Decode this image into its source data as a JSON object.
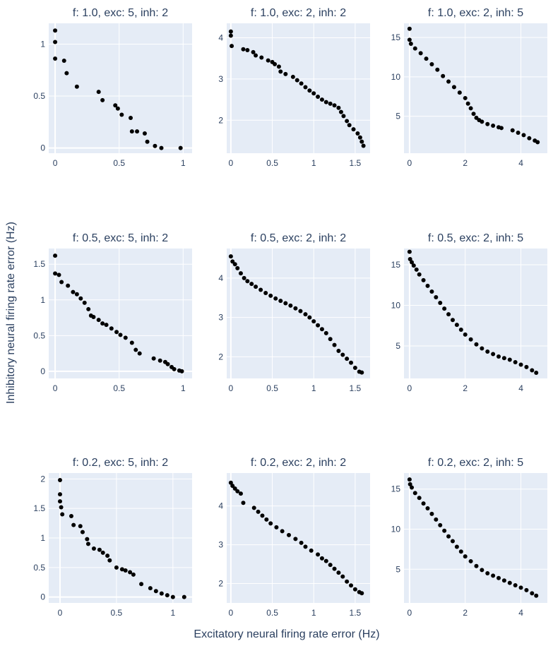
{
  "figure": {
    "xlabel": "Excitatory neural firing rate error (Hz)",
    "ylabel": "Inhibitory neural firing rate error (Hz)"
  },
  "chart_data": [
    {
      "type": "scatter",
      "title": "f: 1.0, exc: 5, inh: 2",
      "xlim": [
        -0.05,
        1.07
      ],
      "ylim": [
        -0.05,
        1.2
      ],
      "xticks": [
        0,
        0.5,
        1
      ],
      "xtick_labels": [
        "0",
        "0.5",
        "1"
      ],
      "yticks": [
        0,
        0.5,
        1
      ],
      "ytick_labels": [
        "0",
        "0.5",
        "1"
      ],
      "x": [
        0,
        0,
        0,
        0.07,
        0.09,
        0.17,
        0.34,
        0.37,
        0.47,
        0.49,
        0.52,
        0.59,
        0.6,
        0.64,
        0.7,
        0.72,
        0.78,
        0.83,
        0.98
      ],
      "y": [
        1.13,
        1.02,
        0.86,
        0.84,
        0.72,
        0.59,
        0.54,
        0.46,
        0.41,
        0.38,
        0.32,
        0.29,
        0.16,
        0.16,
        0.14,
        0.06,
        0.02,
        0.0,
        0.0
      ]
    },
    {
      "type": "scatter",
      "title": "f: 1.0, exc: 2, inh: 2",
      "xlim": [
        -0.05,
        1.68
      ],
      "ylim": [
        1.2,
        4.35
      ],
      "xticks": [
        0,
        0.5,
        1,
        1.5
      ],
      "xtick_labels": [
        "0",
        "0.5",
        "1",
        "1.5"
      ],
      "yticks": [
        2,
        3,
        4
      ],
      "ytick_labels": [
        "2",
        "3",
        "4"
      ],
      "x": [
        0,
        0,
        0.01,
        0.15,
        0.2,
        0.27,
        0.3,
        0.37,
        0.45,
        0.5,
        0.53,
        0.58,
        0.6,
        0.66,
        0.75,
        0.8,
        0.85,
        0.9,
        0.95,
        1.0,
        1.05,
        1.1,
        1.15,
        1.2,
        1.25,
        1.3,
        1.33,
        1.36,
        1.4,
        1.43,
        1.48,
        1.53,
        1.56,
        1.58,
        1.6
      ],
      "y": [
        4.15,
        4.05,
        3.8,
        3.72,
        3.7,
        3.65,
        3.57,
        3.52,
        3.45,
        3.41,
        3.36,
        3.3,
        3.18,
        3.12,
        3.05,
        2.97,
        2.89,
        2.8,
        2.72,
        2.65,
        2.57,
        2.5,
        2.44,
        2.4,
        2.36,
        2.3,
        2.2,
        2.1,
        1.98,
        1.88,
        1.78,
        1.68,
        1.58,
        1.48,
        1.38
      ]
    },
    {
      "type": "scatter",
      "title": "f: 1.0, exc: 2, inh: 5",
      "xlim": [
        -0.2,
        4.95
      ],
      "ylim": [
        0.3,
        16.8
      ],
      "xticks": [
        0,
        2,
        4
      ],
      "xtick_labels": [
        "0",
        "2",
        "4"
      ],
      "yticks": [
        5,
        10,
        15
      ],
      "ytick_labels": [
        "5",
        "10",
        "15"
      ],
      "x": [
        0,
        0,
        0.05,
        0.2,
        0.4,
        0.6,
        0.8,
        1.0,
        1.2,
        1.4,
        1.6,
        1.8,
        2.0,
        2.1,
        2.2,
        2.3,
        2.4,
        2.5,
        2.6,
        2.8,
        3.0,
        3.2,
        3.3,
        3.7,
        3.9,
        4.1,
        4.3,
        4.5,
        4.6
      ],
      "y": [
        16.1,
        14.7,
        14.2,
        13.6,
        13.0,
        12.3,
        11.6,
        10.9,
        10.1,
        9.4,
        8.7,
        8.0,
        7.3,
        6.6,
        6.0,
        5.3,
        4.8,
        4.5,
        4.3,
        4.0,
        3.8,
        3.6,
        3.5,
        3.2,
        2.9,
        2.6,
        2.2,
        1.9,
        1.7
      ]
    },
    {
      "type": "scatter",
      "title": "f: 0.5, exc: 5, inh: 2",
      "xlim": [
        -0.05,
        1.07
      ],
      "ylim": [
        -0.1,
        1.72
      ],
      "xticks": [
        0,
        0.5,
        1
      ],
      "xtick_labels": [
        "0",
        "0.5",
        "1"
      ],
      "yticks": [
        0,
        0.5,
        1,
        1.5
      ],
      "ytick_labels": [
        "0",
        "0.5",
        "1",
        "1.5"
      ],
      "x": [
        0,
        0,
        0.03,
        0.05,
        0.1,
        0.14,
        0.17,
        0.2,
        0.23,
        0.26,
        0.28,
        0.3,
        0.34,
        0.37,
        0.4,
        0.44,
        0.48,
        0.51,
        0.55,
        0.6,
        0.63,
        0.66,
        0.77,
        0.82,
        0.86,
        0.88,
        0.91,
        0.93,
        0.97,
        0.99
      ],
      "y": [
        1.62,
        1.37,
        1.35,
        1.25,
        1.2,
        1.11,
        1.08,
        1.02,
        0.96,
        0.87,
        0.78,
        0.76,
        0.72,
        0.67,
        0.65,
        0.6,
        0.55,
        0.51,
        0.47,
        0.4,
        0.3,
        0.25,
        0.18,
        0.15,
        0.13,
        0.1,
        0.06,
        0.03,
        0.01,
        0.0
      ]
    },
    {
      "type": "scatter",
      "title": "f: 0.5, exc: 2, inh: 2",
      "xlim": [
        -0.05,
        1.68
      ],
      "ylim": [
        1.45,
        4.75
      ],
      "xticks": [
        0,
        0.5,
        1,
        1.5
      ],
      "xtick_labels": [
        "0",
        "0.5",
        "1",
        "1.5"
      ],
      "yticks": [
        2,
        3,
        4
      ],
      "ytick_labels": [
        "2",
        "3",
        "4"
      ],
      "x": [
        0,
        0.02,
        0.05,
        0.08,
        0.12,
        0.16,
        0.2,
        0.25,
        0.3,
        0.36,
        0.42,
        0.48,
        0.54,
        0.6,
        0.66,
        0.72,
        0.78,
        0.84,
        0.9,
        0.95,
        1.0,
        1.05,
        1.1,
        1.15,
        1.2,
        1.25,
        1.3,
        1.35,
        1.4,
        1.45,
        1.5,
        1.55,
        1.58
      ],
      "y": [
        4.55,
        4.42,
        4.35,
        4.25,
        4.12,
        4.0,
        3.92,
        3.85,
        3.78,
        3.7,
        3.62,
        3.55,
        3.48,
        3.42,
        3.36,
        3.3,
        3.23,
        3.16,
        3.08,
        3.0,
        2.9,
        2.8,
        2.7,
        2.6,
        2.45,
        2.3,
        2.15,
        2.05,
        1.95,
        1.85,
        1.72,
        1.62,
        1.6
      ]
    },
    {
      "type": "scatter",
      "title": "f: 0.5, exc: 2, inh: 5",
      "xlim": [
        -0.2,
        4.95
      ],
      "ylim": [
        1.0,
        17.0
      ],
      "xticks": [
        0,
        2,
        4
      ],
      "xtick_labels": [
        "0",
        "2",
        "4"
      ],
      "yticks": [
        5,
        10,
        15
      ],
      "ytick_labels": [
        "5",
        "10",
        "15"
      ],
      "x": [
        0,
        0.02,
        0.08,
        0.15,
        0.25,
        0.35,
        0.5,
        0.65,
        0.8,
        0.95,
        1.1,
        1.25,
        1.4,
        1.55,
        1.7,
        1.85,
        2.0,
        2.2,
        2.4,
        2.6,
        2.8,
        3.0,
        3.2,
        3.4,
        3.6,
        3.8,
        4.0,
        4.2,
        4.4,
        4.55
      ],
      "y": [
        16.6,
        15.7,
        15.3,
        14.9,
        14.4,
        13.8,
        13.1,
        12.4,
        11.7,
        11.0,
        10.3,
        9.6,
        8.9,
        8.2,
        7.6,
        7.0,
        6.4,
        5.8,
        5.2,
        4.7,
        4.3,
        4.0,
        3.7,
        3.5,
        3.3,
        3.0,
        2.7,
        2.4,
        2.0,
        1.7
      ]
    },
    {
      "type": "scatter",
      "title": "f: 0.2, exc: 5, inh: 2",
      "xlim": [
        -0.1,
        1.17
      ],
      "ylim": [
        -0.1,
        2.1
      ],
      "xticks": [
        0,
        0.5,
        1
      ],
      "xtick_labels": [
        "0",
        "0.5",
        "1"
      ],
      "yticks": [
        0,
        0.5,
        1,
        1.5,
        2
      ],
      "ytick_labels": [
        "0",
        "0.5",
        "1",
        "1.5",
        "2"
      ],
      "x": [
        0,
        0,
        0,
        0.01,
        0.02,
        0.1,
        0.12,
        0.18,
        0.2,
        0.24,
        0.25,
        0.3,
        0.35,
        0.38,
        0.42,
        0.44,
        0.5,
        0.55,
        0.58,
        0.62,
        0.65,
        0.72,
        0.8,
        0.85,
        0.9,
        0.95,
        1.0,
        1.1
      ],
      "y": [
        1.98,
        1.74,
        1.62,
        1.52,
        1.4,
        1.37,
        1.22,
        1.2,
        1.1,
        0.98,
        0.9,
        0.82,
        0.8,
        0.75,
        0.7,
        0.62,
        0.5,
        0.47,
        0.45,
        0.42,
        0.38,
        0.22,
        0.15,
        0.1,
        0.06,
        0.03,
        0.0,
        0.0
      ]
    },
    {
      "type": "scatter",
      "title": "f: 0.2, exc: 2, inh: 2",
      "xlim": [
        -0.05,
        1.68
      ],
      "ylim": [
        1.5,
        4.85
      ],
      "xticks": [
        0,
        0.5,
        1,
        1.5
      ],
      "xtick_labels": [
        "0",
        "0.5",
        "1",
        "1.5"
      ],
      "yticks": [
        2,
        3,
        4
      ],
      "ytick_labels": [
        "2",
        "3",
        "4"
      ],
      "x": [
        0,
        0.02,
        0.05,
        0.08,
        0.12,
        0.15,
        0.28,
        0.33,
        0.38,
        0.43,
        0.48,
        0.55,
        0.62,
        0.7,
        0.78,
        0.85,
        0.9,
        0.97,
        1.05,
        1.1,
        1.15,
        1.2,
        1.25,
        1.3,
        1.35,
        1.4,
        1.45,
        1.5,
        1.55,
        1.58
      ],
      "y": [
        4.6,
        4.52,
        4.45,
        4.38,
        4.32,
        4.08,
        3.95,
        3.85,
        3.75,
        3.65,
        3.55,
        3.45,
        3.35,
        3.25,
        3.15,
        3.05,
        2.95,
        2.85,
        2.75,
        2.65,
        2.58,
        2.48,
        2.38,
        2.28,
        2.18,
        2.05,
        1.95,
        1.85,
        1.78,
        1.75
      ]
    },
    {
      "type": "scatter",
      "title": "f: 0.2, exc: 2, inh: 5",
      "xlim": [
        -0.2,
        4.95
      ],
      "ylim": [
        0.8,
        17.0
      ],
      "xticks": [
        0,
        2,
        4
      ],
      "xtick_labels": [
        "0",
        "2",
        "4"
      ],
      "yticks": [
        5,
        10,
        15
      ],
      "ytick_labels": [
        "5",
        "10",
        "15"
      ],
      "x": [
        0,
        0.02,
        0.08,
        0.2,
        0.35,
        0.5,
        0.65,
        0.8,
        0.95,
        1.1,
        1.25,
        1.4,
        1.55,
        1.7,
        1.85,
        2.0,
        2.2,
        2.4,
        2.6,
        2.8,
        3.0,
        3.2,
        3.4,
        3.6,
        3.8,
        4.0,
        4.2,
        4.4,
        4.55
      ],
      "y": [
        16.2,
        15.6,
        15.2,
        14.5,
        13.9,
        13.2,
        12.6,
        11.9,
        11.2,
        10.5,
        9.8,
        9.1,
        8.5,
        7.8,
        7.2,
        6.6,
        6.0,
        5.4,
        4.9,
        4.5,
        4.2,
        3.9,
        3.6,
        3.3,
        3.0,
        2.7,
        2.4,
        2.0,
        1.7
      ]
    }
  ]
}
